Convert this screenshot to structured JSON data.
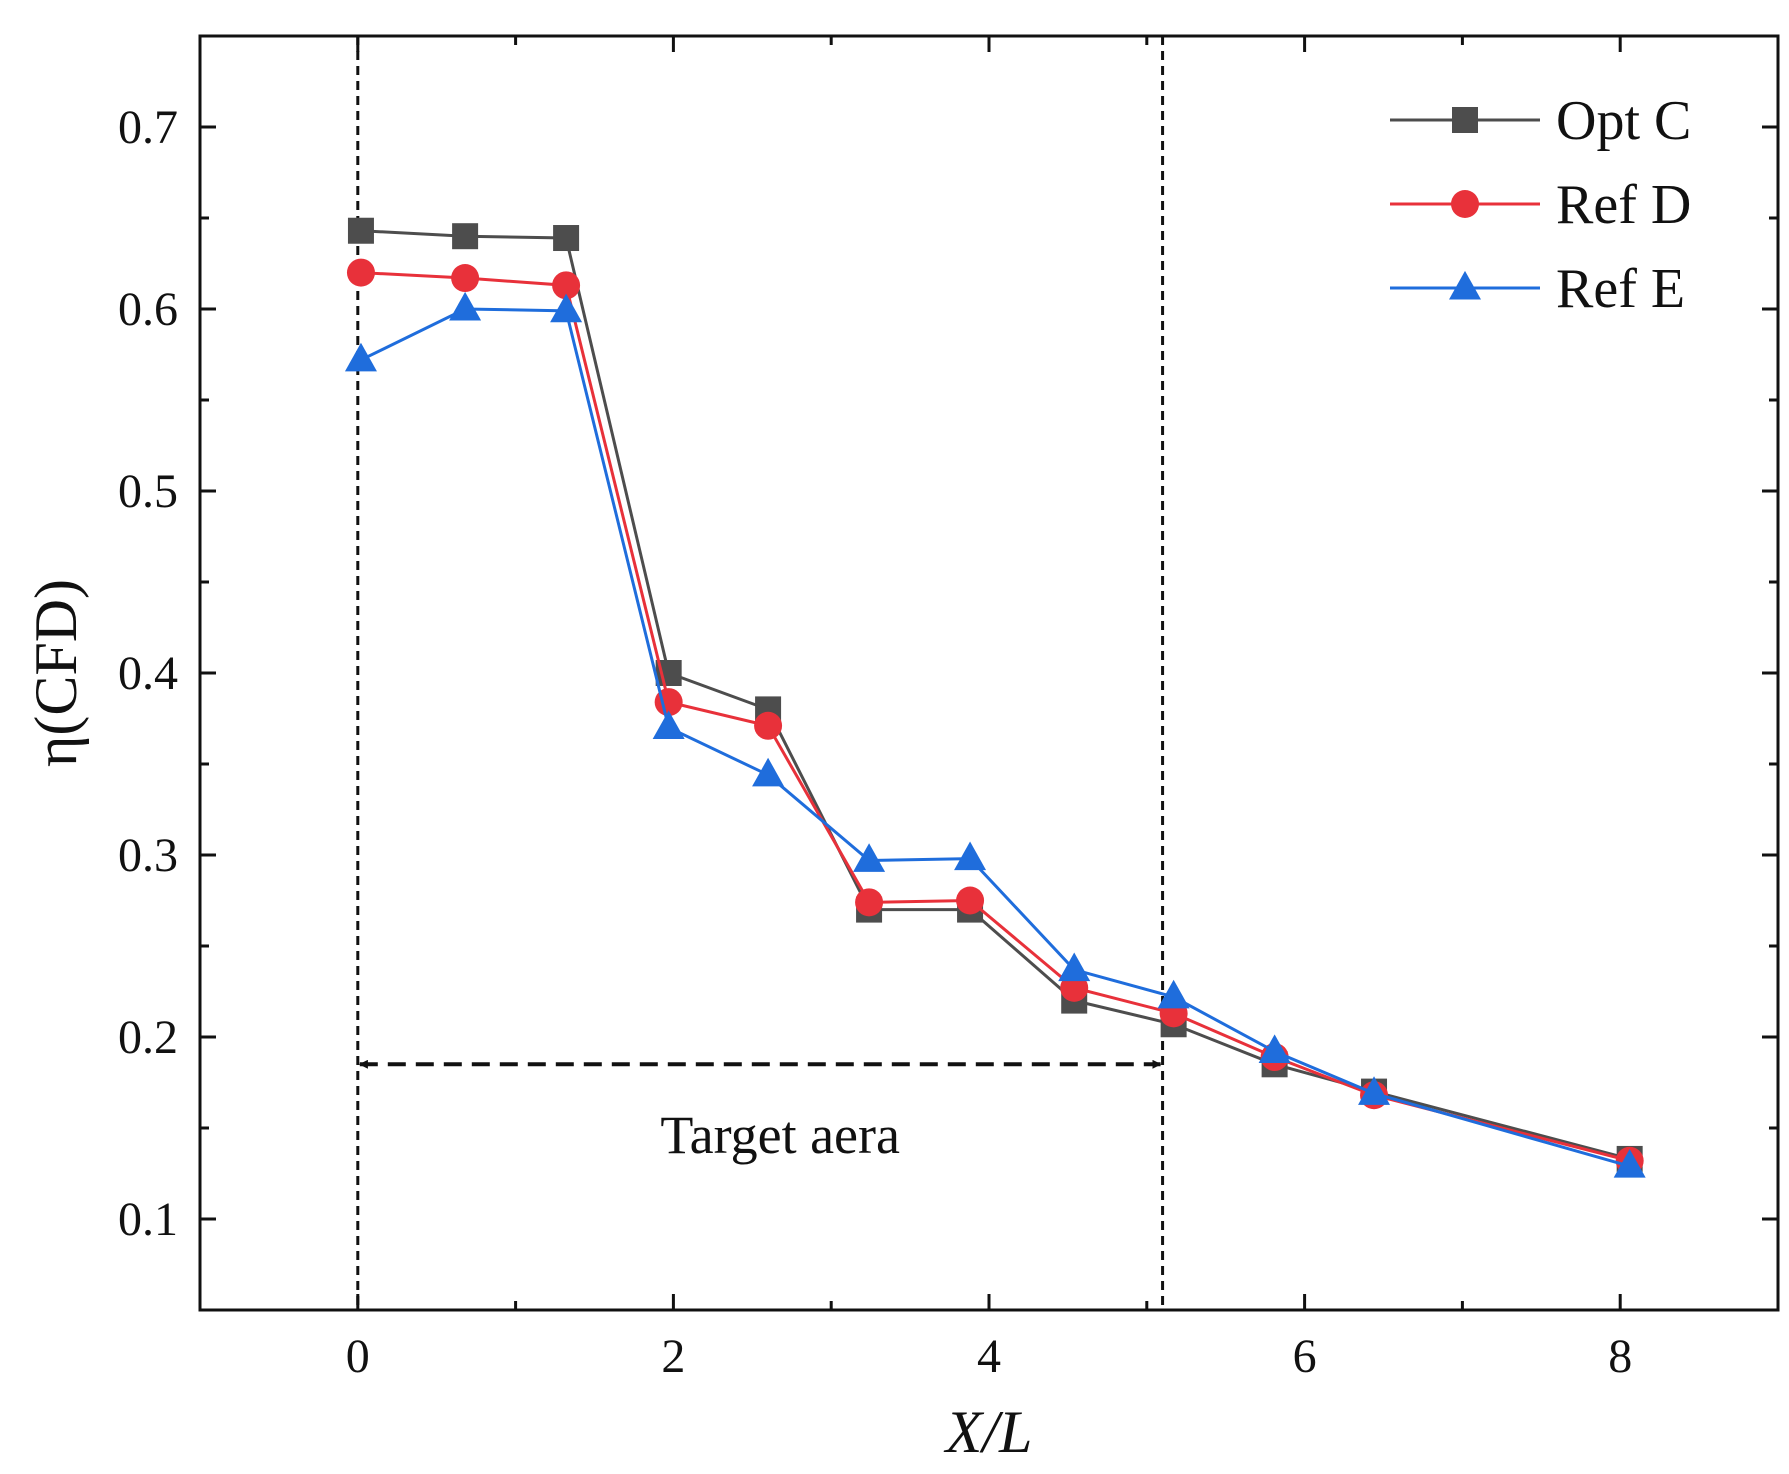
{
  "chart_data": {
    "type": "line",
    "xlabel": "X/L",
    "ylabel": "η(CFD)",
    "xlim": [
      -1,
      9
    ],
    "ylim": [
      0.05,
      0.75
    ],
    "x_ticks": [
      0,
      2,
      4,
      6,
      8
    ],
    "x_tick_labels": [
      "0",
      "2",
      "4",
      "6",
      "8"
    ],
    "x_minor_ticks": [
      -1,
      1,
      3,
      5,
      7,
      9
    ],
    "y_ticks": [
      0.1,
      0.2,
      0.3,
      0.4,
      0.5,
      0.6,
      0.7
    ],
    "y_tick_labels": [
      "0.1",
      "0.2",
      "0.3",
      "0.4",
      "0.5",
      "0.6",
      "0.7"
    ],
    "y_minor_ticks": [
      0.05,
      0.15,
      0.25,
      0.35,
      0.45,
      0.55,
      0.65,
      0.75
    ],
    "grid": false,
    "legend_position": "top-right",
    "series": [
      {
        "name": "Opt C",
        "color": "#4d4d4d",
        "marker": "square",
        "x": [
          0.02,
          0.68,
          1.32,
          1.97,
          2.6,
          3.24,
          3.88,
          4.54,
          5.17,
          5.81,
          6.44,
          8.06
        ],
        "values": [
          0.643,
          0.64,
          0.639,
          0.4,
          0.38,
          0.27,
          0.27,
          0.22,
          0.207,
          0.185,
          0.17,
          0.133
        ]
      },
      {
        "name": "Ref D",
        "color": "#e8313a",
        "marker": "circle",
        "x": [
          0.02,
          0.68,
          1.32,
          1.97,
          2.6,
          3.24,
          3.88,
          4.54,
          5.17,
          5.81,
          6.44,
          8.06
        ],
        "values": [
          0.62,
          0.617,
          0.613,
          0.384,
          0.371,
          0.274,
          0.275,
          0.227,
          0.213,
          0.189,
          0.168,
          0.132
        ]
      },
      {
        "name": "Ref E",
        "color": "#1f6ddc",
        "marker": "triangle",
        "x": [
          0.02,
          0.68,
          1.32,
          1.97,
          2.6,
          3.24,
          3.88,
          4.54,
          5.17,
          5.81,
          6.44,
          8.06
        ],
        "values": [
          0.572,
          0.6,
          0.599,
          0.37,
          0.344,
          0.297,
          0.298,
          0.237,
          0.222,
          0.192,
          0.169,
          0.129
        ]
      }
    ],
    "annotations": {
      "target_label": "Target aera",
      "target_x_start": 0,
      "target_x_end": 5.1,
      "target_arrow_y": 0.185,
      "target_label_y": 0.145
    }
  }
}
